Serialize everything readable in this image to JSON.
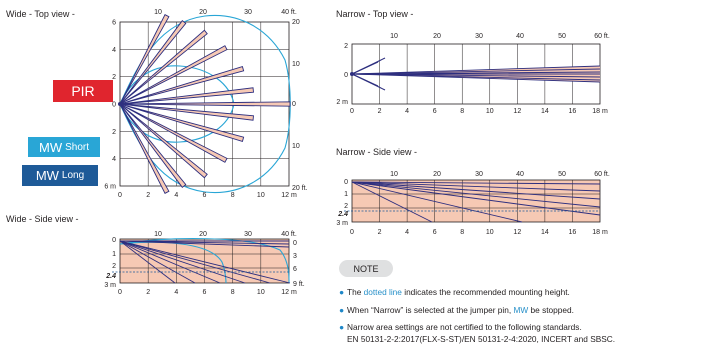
{
  "panels": {
    "wide_top": {
      "title": "Wide - Top view -",
      "ft_ticks": [
        "10",
        "20",
        "30",
        "40 ft."
      ],
      "m_ticks": [
        "0",
        "2",
        "4",
        "6",
        "8",
        "10",
        "12 m"
      ],
      "left_ticks": [
        "6",
        "4",
        "2",
        "0",
        "2",
        "4",
        "6 m"
      ],
      "right_ticks": [
        "20",
        "10",
        "0",
        "10",
        "20 ft."
      ]
    },
    "wide_side": {
      "title": "Wide - Side view -",
      "ft_ticks": [
        "10",
        "20",
        "30",
        "40 ft."
      ],
      "m_ticks": [
        "0",
        "2",
        "4",
        "6",
        "8",
        "10",
        "12 m"
      ],
      "left_ticks": [
        "0",
        "1",
        "2",
        "2.4",
        "3 m"
      ],
      "right_ticks": [
        "0",
        "3",
        "6",
        "9 ft."
      ]
    },
    "narrow_top": {
      "title": "Narrow - Top view -",
      "ft_ticks": [
        "10",
        "20",
        "30",
        "40",
        "50",
        "60 ft."
      ],
      "m_ticks": [
        "0",
        "2",
        "4",
        "6",
        "8",
        "10",
        "12",
        "14",
        "16",
        "18 m"
      ],
      "left_ticks": [
        "2",
        "0",
        "2 m"
      ]
    },
    "narrow_side": {
      "title": "Narrow - Side view -",
      "ft_ticks": [
        "10",
        "20",
        "30",
        "40",
        "50",
        "60 ft."
      ],
      "m_ticks": [
        "0",
        "2",
        "4",
        "6",
        "8",
        "10",
        "12",
        "14",
        "16",
        "18 m"
      ],
      "left_ticks": [
        "0",
        "1",
        "2",
        "2.4",
        "3 m"
      ]
    }
  },
  "legend": {
    "pir": "PIR",
    "mw_short": "MW",
    "mw_short_suffix": "Short",
    "mw_long": "MW",
    "mw_long_suffix": "Long"
  },
  "note": {
    "badge": "NOTE",
    "line1_pre": "The ",
    "line1_hl": "dotted line",
    "line1_post": " indicates the recommended mounting height.",
    "line2_pre": "When “Narrow” is selected at the jumper pin, ",
    "line2_hl": "MW",
    "line2_post": " be stopped.",
    "line3": "Narrow area settings are not certified to the following standards.",
    "line4": "EN 50131-2-2:2017(FLX-S-ST)/EN 50131-2-4:2020, INCERT and SBSC."
  },
  "colors": {
    "pir": "#e0252e",
    "mw_short": "#29a6d6",
    "mw_long": "#1e5a98",
    "beam": "#2e2f7f",
    "zone_fill": "#f6c9b4",
    "accent_text": "#2790c9"
  }
}
